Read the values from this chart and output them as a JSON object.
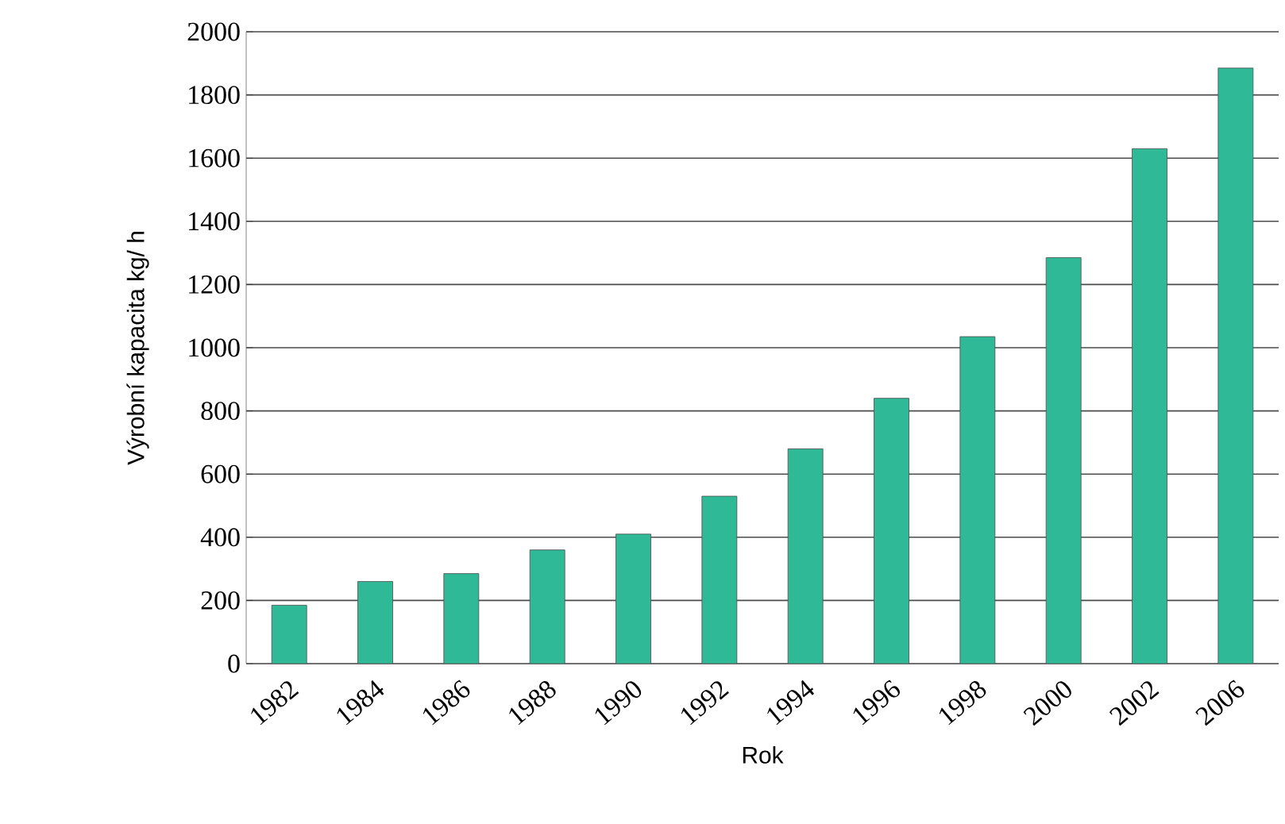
{
  "chart_data": {
    "type": "bar",
    "xlabel": "Rok",
    "ylabel": "Výrobní kapacita kg/ h",
    "categories": [
      "1982",
      "1984",
      "1986",
      "1988",
      "1990",
      "1992",
      "1994",
      "1996",
      "1998",
      "2000",
      "2002",
      "2006"
    ],
    "values": [
      185,
      260,
      285,
      360,
      410,
      530,
      680,
      840,
      1035,
      1285,
      1630,
      1885
    ],
    "color": "#30b996",
    "ylim": [
      0,
      2000
    ],
    "yticks": [
      0,
      200,
      400,
      600,
      800,
      1000,
      1200,
      1400,
      1600,
      1800,
      2000
    ],
    "grid": "y"
  }
}
